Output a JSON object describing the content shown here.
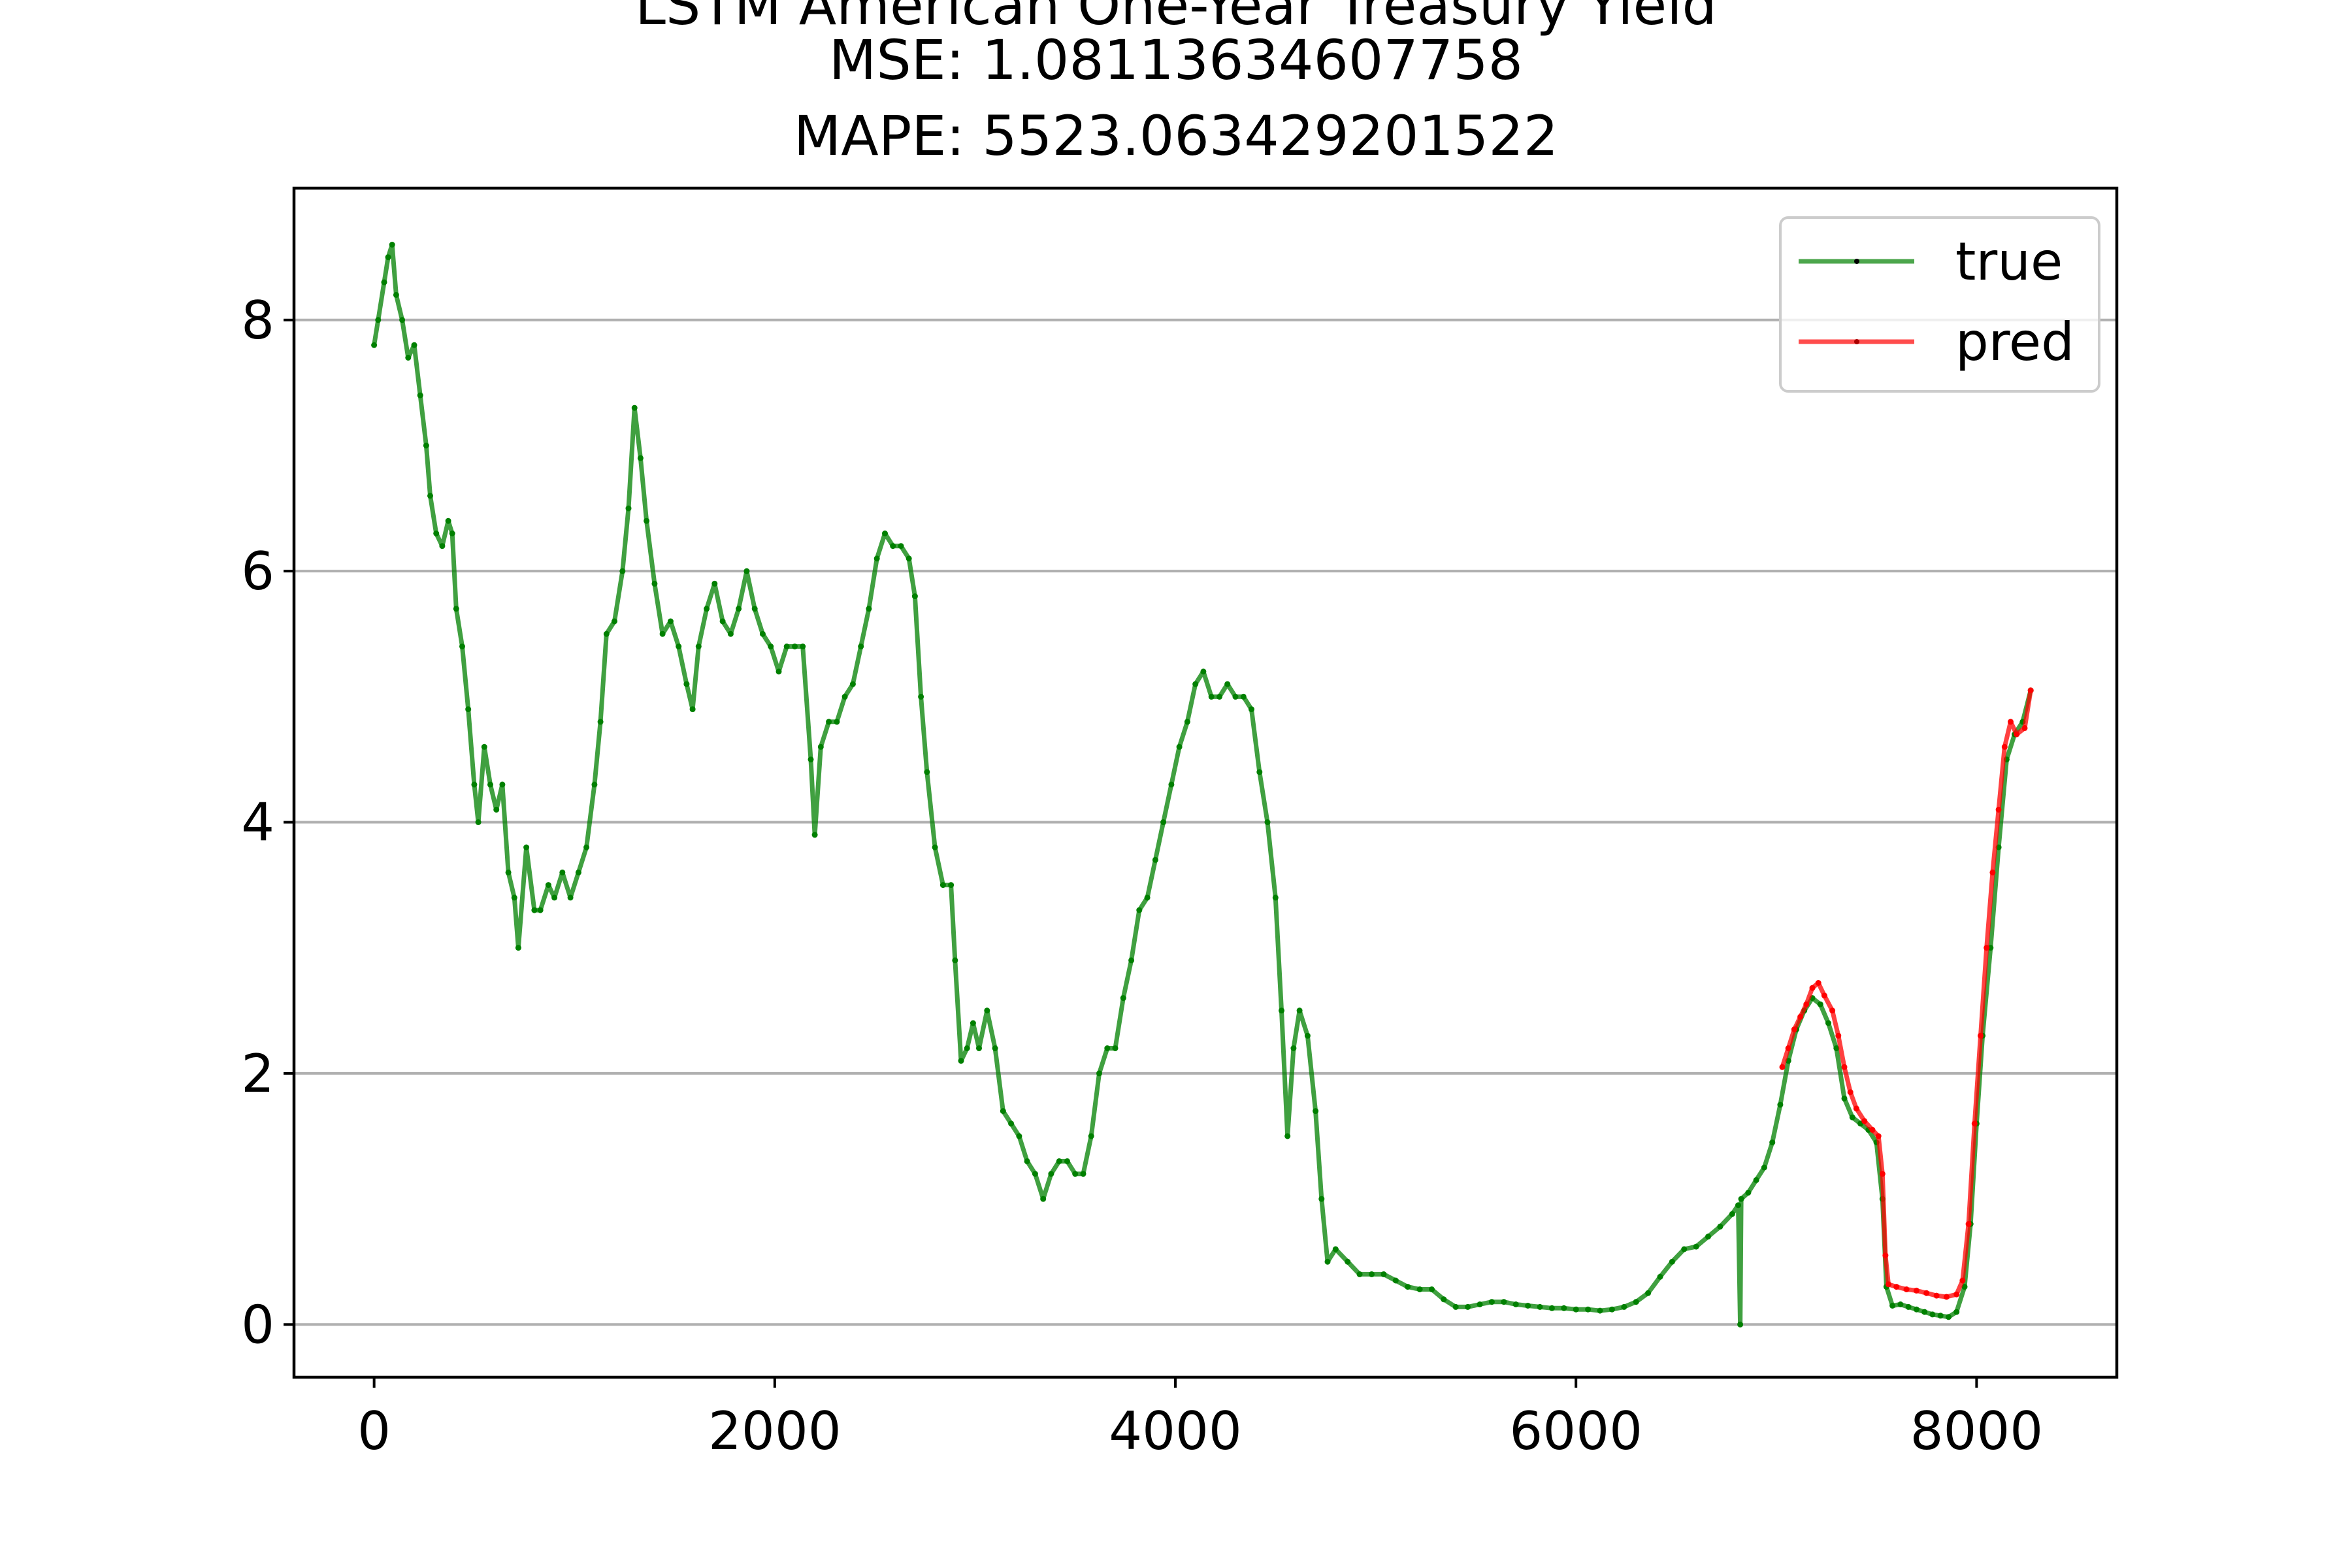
{
  "chart_data": {
    "type": "line",
    "title_lines": [
      "LSTM American One-Year Treasury Yield",
      "MSE: 1.08113634607758",
      "MAPE: 5523.063429201522"
    ],
    "xlabel": "",
    "ylabel": "",
    "xlim": [
      -400,
      8700
    ],
    "ylim": [
      -0.42,
      9.05
    ],
    "xticks": [
      0,
      2000,
      4000,
      6000,
      8000
    ],
    "xtick_labels": [
      "0",
      "2000",
      "4000",
      "6000",
      "8000"
    ],
    "yticks": [
      0,
      2,
      4,
      6,
      8
    ],
    "ytick_labels": [
      "0",
      "2",
      "4",
      "6",
      "8"
    ],
    "grid": "y-major",
    "legend_position": "top-right",
    "colors": {
      "true": "#008000",
      "pred": "#ff0000",
      "grid": "#b0b0b0"
    },
    "series": [
      {
        "name": "true",
        "color": "#008000",
        "points": [
          [
            0,
            7.8
          ],
          [
            20,
            8.0
          ],
          [
            50,
            8.3
          ],
          [
            70,
            8.5
          ],
          [
            90,
            8.6
          ],
          [
            110,
            8.2
          ],
          [
            140,
            8.0
          ],
          [
            170,
            7.7
          ],
          [
            200,
            7.8
          ],
          [
            230,
            7.4
          ],
          [
            260,
            7.0
          ],
          [
            280,
            6.6
          ],
          [
            310,
            6.3
          ],
          [
            340,
            6.2
          ],
          [
            370,
            6.4
          ],
          [
            390,
            6.3
          ],
          [
            410,
            5.7
          ],
          [
            440,
            5.4
          ],
          [
            470,
            4.9
          ],
          [
            500,
            4.3
          ],
          [
            520,
            4.0
          ],
          [
            550,
            4.6
          ],
          [
            580,
            4.3
          ],
          [
            610,
            4.1
          ],
          [
            640,
            4.3
          ],
          [
            670,
            3.6
          ],
          [
            700,
            3.4
          ],
          [
            720,
            3.0
          ],
          [
            760,
            3.8
          ],
          [
            800,
            3.3
          ],
          [
            830,
            3.3
          ],
          [
            870,
            3.5
          ],
          [
            900,
            3.4
          ],
          [
            940,
            3.6
          ],
          [
            980,
            3.4
          ],
          [
            1020,
            3.6
          ],
          [
            1060,
            3.8
          ],
          [
            1100,
            4.3
          ],
          [
            1130,
            4.8
          ],
          [
            1160,
            5.5
          ],
          [
            1200,
            5.6
          ],
          [
            1240,
            6.0
          ],
          [
            1270,
            6.5
          ],
          [
            1300,
            7.3
          ],
          [
            1330,
            6.9
          ],
          [
            1360,
            6.4
          ],
          [
            1400,
            5.9
          ],
          [
            1440,
            5.5
          ],
          [
            1480,
            5.6
          ],
          [
            1520,
            5.4
          ],
          [
            1560,
            5.1
          ],
          [
            1590,
            4.9
          ],
          [
            1620,
            5.4
          ],
          [
            1660,
            5.7
          ],
          [
            1700,
            5.9
          ],
          [
            1740,
            5.6
          ],
          [
            1780,
            5.5
          ],
          [
            1820,
            5.7
          ],
          [
            1860,
            6.0
          ],
          [
            1900,
            5.7
          ],
          [
            1940,
            5.5
          ],
          [
            1980,
            5.4
          ],
          [
            2020,
            5.2
          ],
          [
            2060,
            5.4
          ],
          [
            2100,
            5.4
          ],
          [
            2140,
            5.4
          ],
          [
            2180,
            4.5
          ],
          [
            2200,
            3.9
          ],
          [
            2230,
            4.6
          ],
          [
            2270,
            4.8
          ],
          [
            2310,
            4.8
          ],
          [
            2350,
            5.0
          ],
          [
            2390,
            5.1
          ],
          [
            2430,
            5.4
          ],
          [
            2470,
            5.7
          ],
          [
            2510,
            6.1
          ],
          [
            2550,
            6.3
          ],
          [
            2590,
            6.2
          ],
          [
            2630,
            6.2
          ],
          [
            2670,
            6.1
          ],
          [
            2700,
            5.8
          ],
          [
            2730,
            5.0
          ],
          [
            2760,
            4.4
          ],
          [
            2800,
            3.8
          ],
          [
            2840,
            3.5
          ],
          [
            2880,
            3.5
          ],
          [
            2900,
            2.9
          ],
          [
            2930,
            2.1
          ],
          [
            2960,
            2.2
          ],
          [
            2990,
            2.4
          ],
          [
            3020,
            2.2
          ],
          [
            3060,
            2.5
          ],
          [
            3100,
            2.2
          ],
          [
            3140,
            1.7
          ],
          [
            3180,
            1.6
          ],
          [
            3220,
            1.5
          ],
          [
            3260,
            1.3
          ],
          [
            3300,
            1.2
          ],
          [
            3340,
            1.0
          ],
          [
            3380,
            1.2
          ],
          [
            3420,
            1.3
          ],
          [
            3460,
            1.3
          ],
          [
            3500,
            1.2
          ],
          [
            3540,
            1.2
          ],
          [
            3580,
            1.5
          ],
          [
            3620,
            2.0
          ],
          [
            3660,
            2.2
          ],
          [
            3700,
            2.2
          ],
          [
            3740,
            2.6
          ],
          [
            3780,
            2.9
          ],
          [
            3820,
            3.3
          ],
          [
            3860,
            3.4
          ],
          [
            3900,
            3.7
          ],
          [
            3940,
            4.0
          ],
          [
            3980,
            4.3
          ],
          [
            4020,
            4.6
          ],
          [
            4060,
            4.8
          ],
          [
            4100,
            5.1
          ],
          [
            4140,
            5.2
          ],
          [
            4180,
            5.0
          ],
          [
            4220,
            5.0
          ],
          [
            4260,
            5.1
          ],
          [
            4300,
            5.0
          ],
          [
            4340,
            5.0
          ],
          [
            4380,
            4.9
          ],
          [
            4420,
            4.4
          ],
          [
            4460,
            4.0
          ],
          [
            4500,
            3.4
          ],
          [
            4530,
            2.5
          ],
          [
            4560,
            1.5
          ],
          [
            4590,
            2.2
          ],
          [
            4620,
            2.5
          ],
          [
            4660,
            2.3
          ],
          [
            4700,
            1.7
          ],
          [
            4730,
            1.0
          ],
          [
            4760,
            0.5
          ],
          [
            4800,
            0.6
          ],
          [
            4860,
            0.5
          ],
          [
            4920,
            0.4
          ],
          [
            4980,
            0.4
          ],
          [
            5040,
            0.4
          ],
          [
            5100,
            0.35
          ],
          [
            5160,
            0.3
          ],
          [
            5220,
            0.28
          ],
          [
            5280,
            0.28
          ],
          [
            5340,
            0.2
          ],
          [
            5400,
            0.14
          ],
          [
            5460,
            0.14
          ],
          [
            5520,
            0.16
          ],
          [
            5580,
            0.18
          ],
          [
            5640,
            0.18
          ],
          [
            5700,
            0.16
          ],
          [
            5760,
            0.15
          ],
          [
            5820,
            0.14
          ],
          [
            5880,
            0.13
          ],
          [
            5940,
            0.13
          ],
          [
            6000,
            0.12
          ],
          [
            6060,
            0.12
          ],
          [
            6120,
            0.11
          ],
          [
            6180,
            0.12
          ],
          [
            6240,
            0.14
          ],
          [
            6300,
            0.18
          ],
          [
            6360,
            0.25
          ],
          [
            6420,
            0.38
          ],
          [
            6480,
            0.5
          ],
          [
            6540,
            0.6
          ],
          [
            6600,
            0.62
          ],
          [
            6660,
            0.7
          ],
          [
            6720,
            0.78
          ],
          [
            6780,
            0.88
          ],
          [
            6810,
            0.95
          ],
          [
            6820,
            0.0
          ],
          [
            6825,
            1.0
          ],
          [
            6860,
            1.05
          ],
          [
            6900,
            1.15
          ],
          [
            6940,
            1.25
          ],
          [
            6980,
            1.45
          ],
          [
            7020,
            1.75
          ],
          [
            7060,
            2.1
          ],
          [
            7100,
            2.35
          ],
          [
            7140,
            2.5
          ],
          [
            7180,
            2.6
          ],
          [
            7220,
            2.55
          ],
          [
            7260,
            2.4
          ],
          [
            7300,
            2.2
          ],
          [
            7340,
            1.8
          ],
          [
            7380,
            1.65
          ],
          [
            7420,
            1.6
          ],
          [
            7460,
            1.55
          ],
          [
            7500,
            1.45
          ],
          [
            7530,
            1.0
          ],
          [
            7550,
            0.3
          ],
          [
            7580,
            0.15
          ],
          [
            7620,
            0.16
          ],
          [
            7660,
            0.14
          ],
          [
            7700,
            0.12
          ],
          [
            7740,
            0.1
          ],
          [
            7780,
            0.08
          ],
          [
            7820,
            0.07
          ],
          [
            7860,
            0.06
          ],
          [
            7900,
            0.1
          ],
          [
            7940,
            0.3
          ],
          [
            7970,
            0.8
          ],
          [
            8000,
            1.6
          ],
          [
            8030,
            2.3
          ],
          [
            8070,
            3.0
          ],
          [
            8110,
            3.8
          ],
          [
            8150,
            4.5
          ],
          [
            8190,
            4.7
          ],
          [
            8230,
            4.8
          ],
          [
            8270,
            5.05
          ]
        ]
      },
      {
        "name": "pred",
        "color": "#ff0000",
        "points": [
          [
            7030,
            2.05
          ],
          [
            7060,
            2.2
          ],
          [
            7090,
            2.35
          ],
          [
            7120,
            2.45
          ],
          [
            7150,
            2.55
          ],
          [
            7180,
            2.68
          ],
          [
            7210,
            2.72
          ],
          [
            7240,
            2.62
          ],
          [
            7280,
            2.5
          ],
          [
            7310,
            2.3
          ],
          [
            7340,
            2.05
          ],
          [
            7370,
            1.85
          ],
          [
            7400,
            1.72
          ],
          [
            7440,
            1.62
          ],
          [
            7480,
            1.55
          ],
          [
            7510,
            1.5
          ],
          [
            7530,
            1.2
          ],
          [
            7545,
            0.55
          ],
          [
            7560,
            0.32
          ],
          [
            7600,
            0.3
          ],
          [
            7650,
            0.28
          ],
          [
            7700,
            0.27
          ],
          [
            7750,
            0.25
          ],
          [
            7800,
            0.23
          ],
          [
            7850,
            0.22
          ],
          [
            7900,
            0.24
          ],
          [
            7930,
            0.35
          ],
          [
            7960,
            0.8
          ],
          [
            7990,
            1.6
          ],
          [
            8020,
            2.3
          ],
          [
            8050,
            3.0
          ],
          [
            8080,
            3.6
          ],
          [
            8110,
            4.1
          ],
          [
            8140,
            4.6
          ],
          [
            8170,
            4.8
          ],
          [
            8200,
            4.7
          ],
          [
            8240,
            4.75
          ],
          [
            8270,
            5.05
          ]
        ]
      }
    ]
  }
}
